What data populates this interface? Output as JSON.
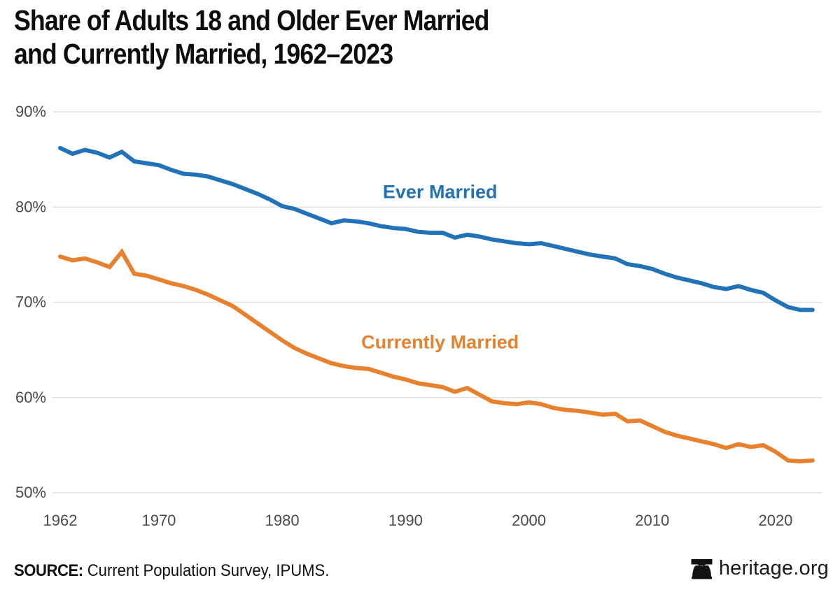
{
  "title": {
    "line1": "Share of Adults 18 and Older Ever Married",
    "line2": "and Currently Married, 1962–2023"
  },
  "colors": {
    "ever_married": "#2272B8",
    "currently_married": "#E8812D",
    "gridline": "#E2E2E2",
    "axis_text": "#4A4A4A",
    "title_text": "#0D0D0D"
  },
  "chart_data": {
    "type": "line",
    "title": "Share of Adults 18 and Older Ever Married and Currently Married, 1962–2023",
    "xlabel": "",
    "ylabel": "",
    "ylim": [
      50,
      90
    ],
    "xlim": [
      1962,
      2023
    ],
    "grid": "horizontal",
    "legend": "inline-labels",
    "y_ticks": [
      {
        "value": 90,
        "label": "90%"
      },
      {
        "value": 80,
        "label": "80%"
      },
      {
        "value": 70,
        "label": "70%"
      },
      {
        "value": 60,
        "label": "60%"
      },
      {
        "value": 50,
        "label": "50%"
      }
    ],
    "x_ticks": [
      "1962",
      "1970",
      "1980",
      "1990",
      "2000",
      "2010",
      "2020"
    ],
    "x_tick_years": [
      1962,
      1970,
      1980,
      1990,
      2000,
      2010,
      2020
    ],
    "x": [
      1962,
      1963,
      1964,
      1965,
      1966,
      1967,
      1968,
      1969,
      1970,
      1971,
      1972,
      1973,
      1974,
      1975,
      1976,
      1977,
      1978,
      1979,
      1980,
      1981,
      1982,
      1983,
      1984,
      1985,
      1986,
      1987,
      1988,
      1989,
      1990,
      1991,
      1992,
      1993,
      1994,
      1995,
      1996,
      1997,
      1998,
      1999,
      2000,
      2001,
      2002,
      2003,
      2004,
      2005,
      2006,
      2007,
      2008,
      2009,
      2010,
      2011,
      2012,
      2013,
      2014,
      2015,
      2016,
      2017,
      2018,
      2019,
      2020,
      2021,
      2022,
      2023
    ],
    "series": [
      {
        "name": "Ever Married",
        "color": "#2272B8",
        "values": [
          86.2,
          85.6,
          86.0,
          85.7,
          85.2,
          85.8,
          84.8,
          84.6,
          84.4,
          83.9,
          83.5,
          83.4,
          83.2,
          82.8,
          82.4,
          81.9,
          81.4,
          80.8,
          80.1,
          79.8,
          79.3,
          78.8,
          78.3,
          78.6,
          78.5,
          78.3,
          78.0,
          77.8,
          77.7,
          77.4,
          77.3,
          77.3,
          76.8,
          77.1,
          76.9,
          76.6,
          76.4,
          76.2,
          76.1,
          76.2,
          75.9,
          75.6,
          75.3,
          75.0,
          74.8,
          74.6,
          74.0,
          73.8,
          73.5,
          73.0,
          72.6,
          72.3,
          72.0,
          71.6,
          71.4,
          71.7,
          71.3,
          71.0,
          70.2,
          69.5,
          69.2,
          69.2
        ]
      },
      {
        "name": "Currently Married",
        "color": "#E8812D",
        "values": [
          74.8,
          74.4,
          74.6,
          74.2,
          73.7,
          75.3,
          73.0,
          72.8,
          72.4,
          72.0,
          71.7,
          71.3,
          70.8,
          70.2,
          69.6,
          68.7,
          67.8,
          66.9,
          66.0,
          65.2,
          64.6,
          64.1,
          63.6,
          63.3,
          63.1,
          63.0,
          62.6,
          62.2,
          61.9,
          61.5,
          61.3,
          61.1,
          60.6,
          61.0,
          60.3,
          59.6,
          59.4,
          59.3,
          59.5,
          59.3,
          58.9,
          58.7,
          58.6,
          58.4,
          58.2,
          58.3,
          57.5,
          57.6,
          57.0,
          56.4,
          56.0,
          55.7,
          55.4,
          55.1,
          54.7,
          55.1,
          54.8,
          55.0,
          54.3,
          53.4,
          53.3,
          53.4
        ]
      }
    ],
    "annotations": [
      {
        "series": "Ever Married",
        "text": "Ever Married",
        "x": 1992.8,
        "y": 81.6,
        "color": "#2272B8"
      },
      {
        "series": "Currently Married",
        "text": "Currently Married",
        "x": 1992.8,
        "y": 65.8,
        "color": "#E8812D"
      }
    ]
  },
  "footer": {
    "source_label": "SOURCE:",
    "source_text": " Current Population Survey, IPUMS.",
    "brand": "heritage.org",
    "brand_icon": "liberty-bell-icon"
  }
}
